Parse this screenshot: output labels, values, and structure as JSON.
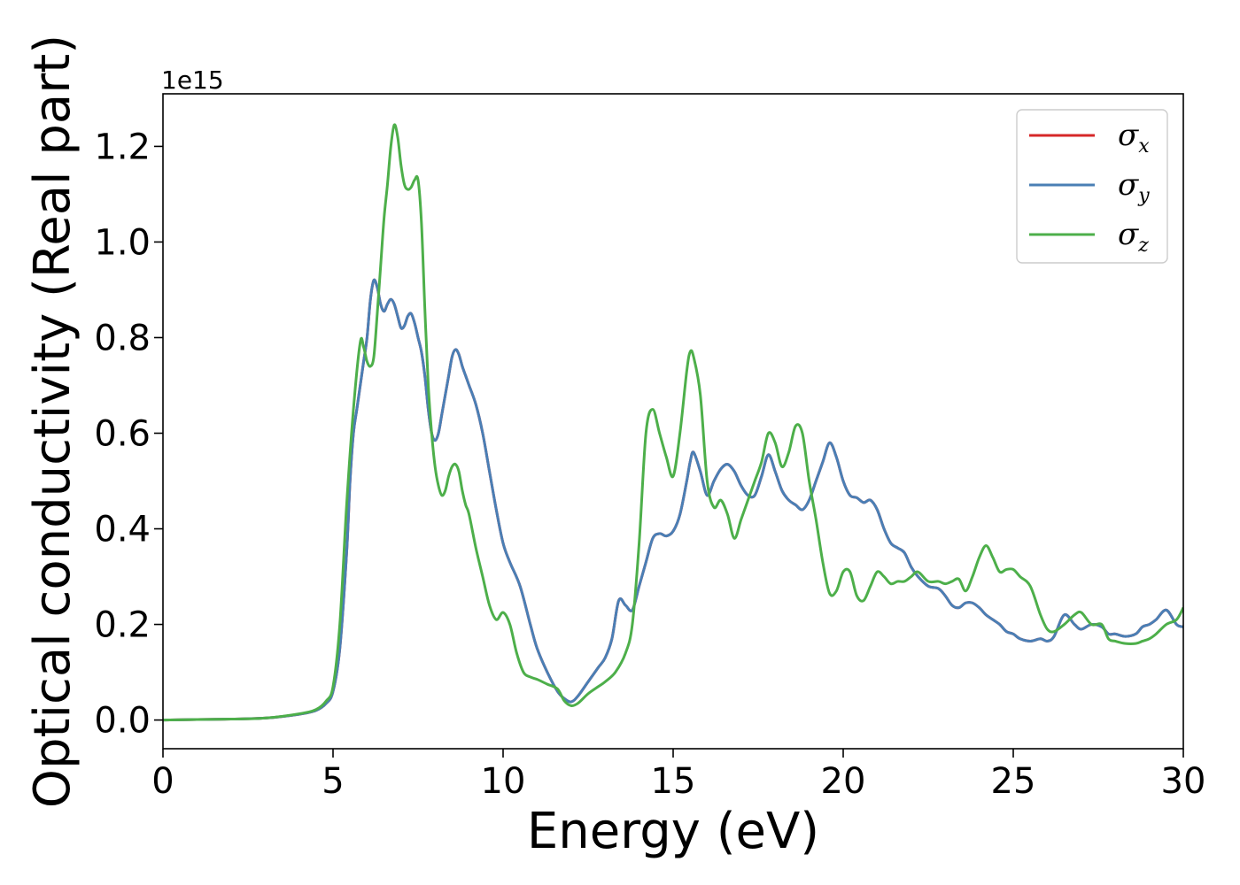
{
  "chart_data": {
    "type": "line",
    "title": "",
    "xlabel": "Energy (eV)",
    "ylabel": "Optical conductivity (Real part)",
    "y_offset_text": "1e15",
    "xlim": [
      0,
      30
    ],
    "ylim": [
      -0.06,
      1.31
    ],
    "xticks": [
      0,
      5,
      10,
      15,
      20,
      25,
      30
    ],
    "xtick_labels": [
      "0",
      "5",
      "10",
      "15",
      "20",
      "25",
      "30"
    ],
    "yticks": [
      0.0,
      0.2,
      0.4,
      0.6,
      0.8,
      1.0,
      1.2
    ],
    "ytick_labels": [
      "0.0",
      "0.2",
      "0.4",
      "0.6",
      "0.8",
      "1.0",
      "1.2"
    ],
    "grid": false,
    "legend_position": "top-right",
    "series": [
      {
        "name": "σx",
        "legend_symbol": "σ",
        "legend_sub": "x",
        "color": "#d62728",
        "x": [
          0,
          1,
          2,
          3,
          4,
          4.5,
          4.8,
          5.0,
          5.2,
          5.4,
          5.5,
          5.6,
          5.7,
          5.8,
          5.9,
          6.0,
          6.1,
          6.2,
          6.3,
          6.4,
          6.5,
          6.6,
          6.7,
          6.8,
          6.9,
          7.0,
          7.1,
          7.2,
          7.3,
          7.4,
          7.5,
          7.6,
          7.7,
          7.8,
          7.9,
          8.0,
          8.1,
          8.2,
          8.3,
          8.4,
          8.5,
          8.6,
          8.7,
          8.8,
          8.9,
          9.0,
          9.2,
          9.4,
          9.6,
          9.8,
          10.0,
          10.2,
          10.5,
          10.8,
          11.0,
          11.3,
          11.6,
          11.8,
          12.0,
          12.2,
          12.5,
          12.8,
          13.0,
          13.2,
          13.4,
          13.6,
          13.8,
          14.0,
          14.2,
          14.4,
          14.6,
          14.8,
          15.0,
          15.2,
          15.4,
          15.5,
          15.6,
          15.8,
          16.0,
          16.2,
          16.4,
          16.6,
          16.8,
          17.0,
          17.2,
          17.4,
          17.6,
          17.8,
          18.0,
          18.2,
          18.4,
          18.6,
          18.8,
          19.0,
          19.2,
          19.4,
          19.6,
          19.8,
          20.0,
          20.2,
          20.4,
          20.6,
          20.8,
          21.0,
          21.2,
          21.4,
          21.6,
          21.8,
          22.0,
          22.2,
          22.5,
          22.8,
          23.0,
          23.2,
          23.4,
          23.6,
          23.8,
          24.0,
          24.2,
          24.4,
          24.6,
          24.8,
          25.0,
          25.2,
          25.5,
          25.8,
          26.0,
          26.2,
          26.5,
          26.8,
          27.0,
          27.3,
          27.6,
          27.8,
          28.0,
          28.3,
          28.6,
          28.8,
          29.0,
          29.2,
          29.5,
          29.8,
          30.0
        ],
        "y": [
          0,
          0.001,
          0.002,
          0.004,
          0.012,
          0.02,
          0.035,
          0.06,
          0.15,
          0.35,
          0.5,
          0.6,
          0.65,
          0.7,
          0.75,
          0.8,
          0.88,
          0.92,
          0.905,
          0.87,
          0.855,
          0.87,
          0.88,
          0.87,
          0.845,
          0.82,
          0.825,
          0.845,
          0.85,
          0.83,
          0.8,
          0.77,
          0.72,
          0.65,
          0.6,
          0.585,
          0.6,
          0.64,
          0.68,
          0.72,
          0.76,
          0.775,
          0.765,
          0.74,
          0.72,
          0.7,
          0.66,
          0.6,
          0.52,
          0.44,
          0.37,
          0.33,
          0.28,
          0.2,
          0.15,
          0.1,
          0.06,
          0.045,
          0.038,
          0.05,
          0.08,
          0.11,
          0.13,
          0.17,
          0.25,
          0.24,
          0.23,
          0.28,
          0.33,
          0.38,
          0.39,
          0.385,
          0.395,
          0.43,
          0.5,
          0.54,
          0.56,
          0.52,
          0.47,
          0.5,
          0.525,
          0.535,
          0.52,
          0.49,
          0.47,
          0.47,
          0.51,
          0.555,
          0.52,
          0.48,
          0.46,
          0.45,
          0.44,
          0.46,
          0.5,
          0.54,
          0.58,
          0.55,
          0.5,
          0.47,
          0.465,
          0.455,
          0.46,
          0.44,
          0.4,
          0.37,
          0.36,
          0.35,
          0.32,
          0.3,
          0.28,
          0.275,
          0.26,
          0.24,
          0.235,
          0.245,
          0.245,
          0.235,
          0.22,
          0.21,
          0.2,
          0.185,
          0.18,
          0.17,
          0.165,
          0.17,
          0.165,
          0.175,
          0.22,
          0.2,
          0.19,
          0.2,
          0.195,
          0.18,
          0.18,
          0.175,
          0.18,
          0.195,
          0.2,
          0.21,
          0.23,
          0.2,
          0.195
        ]
      },
      {
        "name": "σy",
        "legend_symbol": "σ",
        "legend_sub": "y",
        "color": "#4a7fb5",
        "x": [
          0,
          1,
          2,
          3,
          4,
          4.5,
          4.8,
          5.0,
          5.2,
          5.4,
          5.5,
          5.6,
          5.7,
          5.8,
          5.9,
          6.0,
          6.1,
          6.2,
          6.3,
          6.4,
          6.5,
          6.6,
          6.7,
          6.8,
          6.9,
          7.0,
          7.1,
          7.2,
          7.3,
          7.4,
          7.5,
          7.6,
          7.7,
          7.8,
          7.9,
          8.0,
          8.1,
          8.2,
          8.3,
          8.4,
          8.5,
          8.6,
          8.7,
          8.8,
          8.9,
          9.0,
          9.2,
          9.4,
          9.6,
          9.8,
          10.0,
          10.2,
          10.5,
          10.8,
          11.0,
          11.3,
          11.6,
          11.8,
          12.0,
          12.2,
          12.5,
          12.8,
          13.0,
          13.2,
          13.4,
          13.6,
          13.8,
          14.0,
          14.2,
          14.4,
          14.6,
          14.8,
          15.0,
          15.2,
          15.4,
          15.5,
          15.6,
          15.8,
          16.0,
          16.2,
          16.4,
          16.6,
          16.8,
          17.0,
          17.2,
          17.4,
          17.6,
          17.8,
          18.0,
          18.2,
          18.4,
          18.6,
          18.8,
          19.0,
          19.2,
          19.4,
          19.6,
          19.8,
          20.0,
          20.2,
          20.4,
          20.6,
          20.8,
          21.0,
          21.2,
          21.4,
          21.6,
          21.8,
          22.0,
          22.2,
          22.5,
          22.8,
          23.0,
          23.2,
          23.4,
          23.6,
          23.8,
          24.0,
          24.2,
          24.4,
          24.6,
          24.8,
          25.0,
          25.2,
          25.5,
          25.8,
          26.0,
          26.2,
          26.5,
          26.8,
          27.0,
          27.3,
          27.6,
          27.8,
          28.0,
          28.3,
          28.6,
          28.8,
          29.0,
          29.2,
          29.5,
          29.8,
          30.0
        ],
        "y": [
          0,
          0.001,
          0.002,
          0.004,
          0.012,
          0.02,
          0.035,
          0.06,
          0.15,
          0.35,
          0.5,
          0.6,
          0.65,
          0.7,
          0.75,
          0.8,
          0.88,
          0.92,
          0.905,
          0.87,
          0.855,
          0.87,
          0.88,
          0.87,
          0.845,
          0.82,
          0.825,
          0.845,
          0.85,
          0.83,
          0.8,
          0.77,
          0.72,
          0.65,
          0.6,
          0.585,
          0.6,
          0.64,
          0.68,
          0.72,
          0.76,
          0.775,
          0.765,
          0.74,
          0.72,
          0.7,
          0.66,
          0.6,
          0.52,
          0.44,
          0.37,
          0.33,
          0.28,
          0.2,
          0.15,
          0.1,
          0.06,
          0.045,
          0.038,
          0.05,
          0.08,
          0.11,
          0.13,
          0.17,
          0.25,
          0.24,
          0.23,
          0.28,
          0.33,
          0.38,
          0.39,
          0.385,
          0.395,
          0.43,
          0.5,
          0.54,
          0.56,
          0.52,
          0.47,
          0.5,
          0.525,
          0.535,
          0.52,
          0.49,
          0.47,
          0.47,
          0.51,
          0.555,
          0.52,
          0.48,
          0.46,
          0.45,
          0.44,
          0.46,
          0.5,
          0.54,
          0.58,
          0.55,
          0.5,
          0.47,
          0.465,
          0.455,
          0.46,
          0.44,
          0.4,
          0.37,
          0.36,
          0.35,
          0.32,
          0.3,
          0.28,
          0.275,
          0.26,
          0.24,
          0.235,
          0.245,
          0.245,
          0.235,
          0.22,
          0.21,
          0.2,
          0.185,
          0.18,
          0.17,
          0.165,
          0.17,
          0.165,
          0.175,
          0.22,
          0.2,
          0.19,
          0.2,
          0.195,
          0.18,
          0.18,
          0.175,
          0.18,
          0.195,
          0.2,
          0.21,
          0.23,
          0.2,
          0.195
        ]
      },
      {
        "name": "σz",
        "legend_symbol": "σ",
        "legend_sub": "z",
        "color": "#4daf4a",
        "x": [
          0,
          1,
          2,
          3,
          4,
          4.5,
          4.8,
          5.0,
          5.2,
          5.4,
          5.6,
          5.8,
          5.9,
          6.0,
          6.1,
          6.2,
          6.3,
          6.4,
          6.5,
          6.6,
          6.7,
          6.8,
          6.9,
          7.0,
          7.1,
          7.2,
          7.3,
          7.4,
          7.5,
          7.6,
          7.7,
          7.8,
          7.9,
          8.0,
          8.1,
          8.2,
          8.3,
          8.4,
          8.5,
          8.6,
          8.7,
          8.8,
          8.9,
          9.0,
          9.2,
          9.4,
          9.6,
          9.8,
          10.0,
          10.2,
          10.4,
          10.6,
          10.8,
          11.0,
          11.3,
          11.6,
          11.8,
          12.0,
          12.2,
          12.5,
          12.8,
          13.0,
          13.3,
          13.6,
          13.8,
          14.0,
          14.2,
          14.4,
          14.6,
          14.8,
          15.0,
          15.2,
          15.4,
          15.5,
          15.6,
          15.8,
          16.0,
          16.2,
          16.4,
          16.6,
          16.8,
          17.0,
          17.2,
          17.4,
          17.6,
          17.8,
          18.0,
          18.2,
          18.4,
          18.6,
          18.8,
          19.0,
          19.2,
          19.4,
          19.6,
          19.8,
          20.0,
          20.2,
          20.4,
          20.6,
          20.8,
          21.0,
          21.2,
          21.4,
          21.6,
          21.8,
          22.0,
          22.2,
          22.5,
          22.8,
          23.0,
          23.2,
          23.4,
          23.6,
          23.8,
          24.0,
          24.2,
          24.4,
          24.6,
          24.8,
          25.0,
          25.2,
          25.5,
          25.8,
          26.0,
          26.2,
          26.5,
          26.8,
          27.0,
          27.3,
          27.6,
          27.8,
          28.0,
          28.3,
          28.6,
          28.8,
          29.0,
          29.2,
          29.5,
          29.8,
          30.0
        ],
        "y": [
          0,
          0.001,
          0.002,
          0.004,
          0.013,
          0.022,
          0.04,
          0.07,
          0.2,
          0.45,
          0.65,
          0.79,
          0.78,
          0.75,
          0.74,
          0.76,
          0.85,
          0.95,
          1.05,
          1.12,
          1.2,
          1.245,
          1.22,
          1.16,
          1.12,
          1.11,
          1.115,
          1.13,
          1.13,
          1.04,
          0.86,
          0.7,
          0.6,
          0.53,
          0.49,
          0.47,
          0.48,
          0.51,
          0.53,
          0.535,
          0.52,
          0.48,
          0.45,
          0.43,
          0.36,
          0.3,
          0.24,
          0.21,
          0.225,
          0.2,
          0.14,
          0.1,
          0.09,
          0.085,
          0.075,
          0.065,
          0.04,
          0.03,
          0.035,
          0.055,
          0.07,
          0.08,
          0.1,
          0.14,
          0.2,
          0.37,
          0.6,
          0.65,
          0.6,
          0.55,
          0.51,
          0.6,
          0.73,
          0.77,
          0.76,
          0.68,
          0.5,
          0.445,
          0.46,
          0.43,
          0.38,
          0.42,
          0.46,
          0.5,
          0.54,
          0.6,
          0.58,
          0.53,
          0.56,
          0.615,
          0.6,
          0.5,
          0.42,
          0.33,
          0.265,
          0.27,
          0.31,
          0.31,
          0.26,
          0.25,
          0.28,
          0.31,
          0.3,
          0.285,
          0.29,
          0.29,
          0.3,
          0.31,
          0.29,
          0.29,
          0.285,
          0.29,
          0.295,
          0.27,
          0.3,
          0.34,
          0.365,
          0.34,
          0.31,
          0.315,
          0.315,
          0.3,
          0.28,
          0.22,
          0.19,
          0.185,
          0.2,
          0.22,
          0.225,
          0.2,
          0.2,
          0.17,
          0.165,
          0.16,
          0.16,
          0.165,
          0.17,
          0.18,
          0.2,
          0.21,
          0.235
        ]
      }
    ]
  }
}
